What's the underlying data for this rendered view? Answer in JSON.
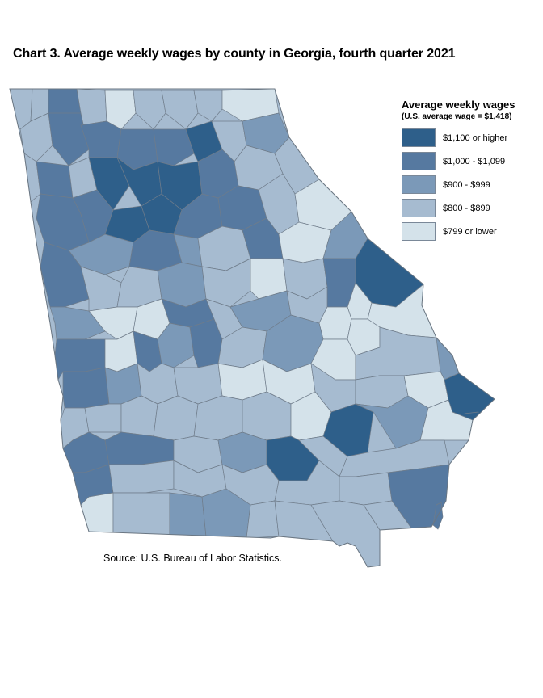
{
  "title": "Chart 3. Average weekly wages by county in Georgia, fourth quarter 2021",
  "legend": {
    "title": "Average weekly wages",
    "subtitle": "(U.S. average wage = $1,418)",
    "items": [
      {
        "label": "$1,100 or higher",
        "color": "#2e5f8a"
      },
      {
        "label": "$1,000 - $1,099",
        "color": "#5679a0"
      },
      {
        "label": "$900 - $999",
        "color": "#7b99b8"
      },
      {
        "label": "$800 - $899",
        "color": "#a6bbd0"
      },
      {
        "label": "$799 or lower",
        "color": "#d4e2ea"
      }
    ]
  },
  "source": "Source: U.S. Bureau of Labor Statistics."
}
